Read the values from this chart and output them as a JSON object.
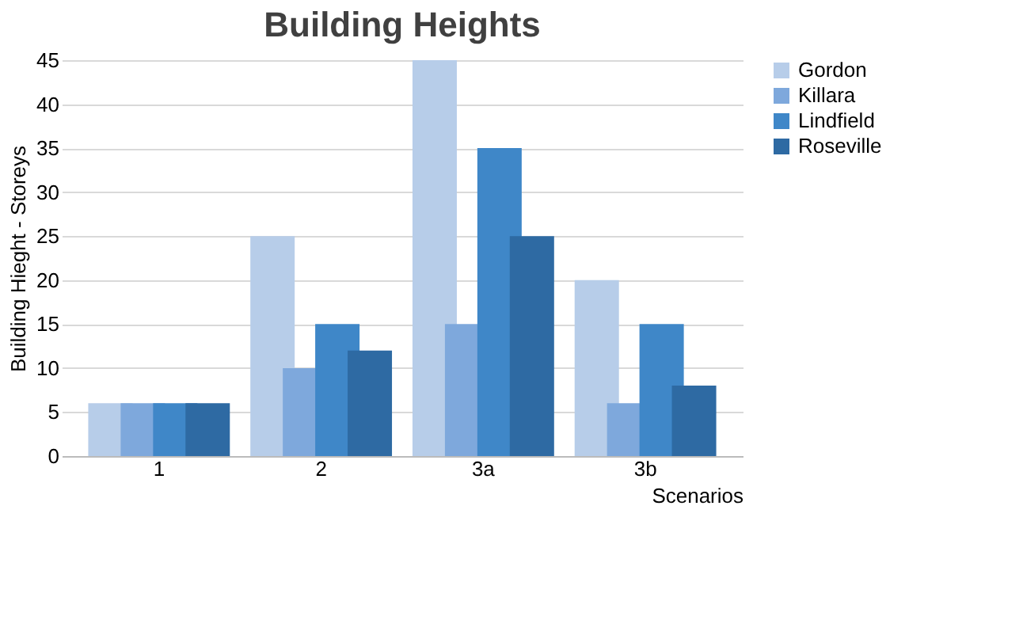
{
  "chart_data": {
    "type": "bar",
    "title": "Building Heights",
    "xlabel": "Scenarios",
    "ylabel": "Building Hieght - Storeys",
    "categories": [
      "1",
      "2",
      "3a",
      "3b"
    ],
    "series": [
      {
        "name": "Gordon",
        "color": "#b7cde9",
        "values": [
          6,
          25,
          45,
          20
        ]
      },
      {
        "name": "Killara",
        "color": "#7ea8dc",
        "values": [
          6,
          10,
          15,
          6
        ]
      },
      {
        "name": "Lindfield",
        "color": "#3f87c8",
        "values": [
          6,
          15,
          35,
          15
        ]
      },
      {
        "name": "Roseville",
        "color": "#2e6aa3",
        "values": [
          6,
          12,
          25,
          8
        ]
      }
    ],
    "ylim": [
      0,
      45
    ],
    "yticks": [
      0,
      5,
      10,
      15,
      20,
      25,
      30,
      35,
      40,
      45
    ],
    "grid": "y",
    "legend": "right"
  }
}
